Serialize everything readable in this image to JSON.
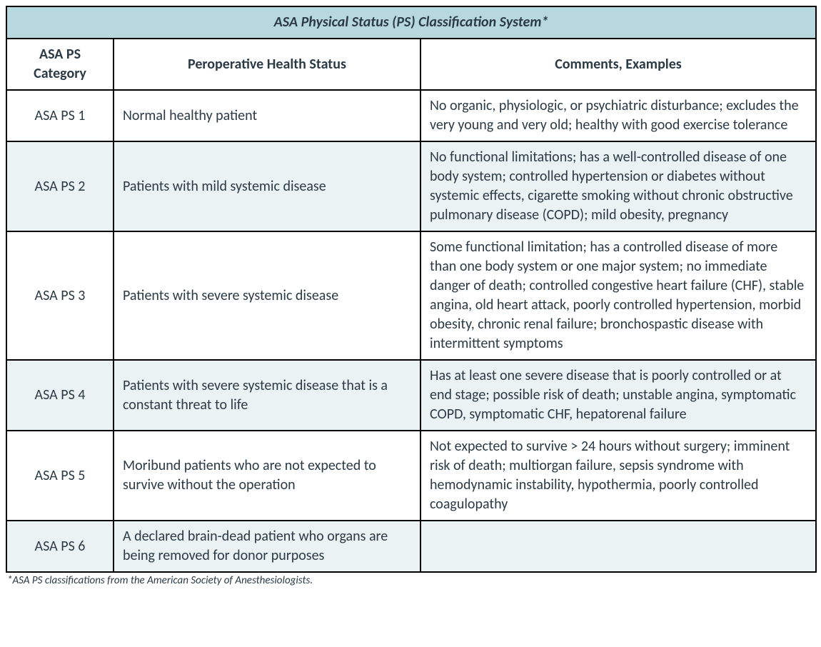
{
  "table": {
    "title": "ASA Physical Status (PS) Classification System*",
    "title_bg": "#b7d8de",
    "columns": [
      "ASA PS Category",
      "Peroperative Health Status",
      "Comments, Examples"
    ],
    "row_alt_bg": "#eaf2f4",
    "row_bg": "#ffffff",
    "border_color": "#000000",
    "text_color": "#2b3a45",
    "font_size_pt": 15,
    "rows": [
      {
        "category": "ASA PS 1",
        "status": "Normal healthy patient",
        "comments": "No organic, physiologic, or psychiatric disturbance; excludes the very young and very old; healthy with good exercise tolerance"
      },
      {
        "category": "ASA PS 2",
        "status": "Patients with mild systemic disease",
        "comments": "No functional limitations; has a well-controlled disease of one body system; controlled hypertension or diabetes without systemic effects, cigarette smoking without chronic obstructive pulmonary disease (COPD); mild obesity, pregnancy"
      },
      {
        "category": "ASA PS 3",
        "status": "Patients with severe systemic disease",
        "comments": "Some functional limitation; has a controlled disease of more than one body system or one major system; no immediate danger of death; controlled congestive heart failure (CHF), stable angina, old heart attack, poorly controlled hypertension, morbid obesity, chronic renal failure; bronchospastic disease with intermittent symptoms"
      },
      {
        "category": "ASA PS 4",
        "status": "Patients with severe systemic disease that is a constant threat to life",
        "comments": "Has at least one severe disease that is poorly controlled or at end stage; possible risk of death; unstable angina, symptomatic COPD, symptomatic CHF, hepatorenal failure"
      },
      {
        "category": "ASA PS 5",
        "status": "Moribund patients who are not expected to survive without the operation",
        "comments": "Not expected to survive > 24 hours without surgery; imminent risk of death; multiorgan failure, sepsis syndrome with hemodynamic instability, hypothermia, poorly controlled coagulopathy"
      },
      {
        "category": "ASA PS 6",
        "status": "A declared brain-dead patient who organs are being removed for donor purposes",
        "comments": ""
      }
    ]
  },
  "footnote": "*ASA PS classifications from the American Society of Anesthesiologists."
}
